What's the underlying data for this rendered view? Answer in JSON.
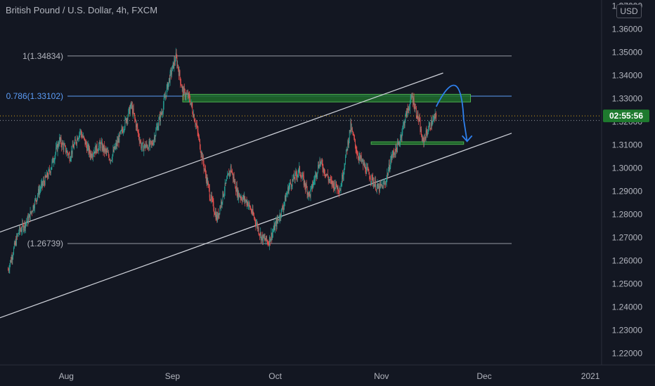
{
  "header": {
    "title": "British Pound / U.S. Dollar, 4h, FXCM",
    "currency": "USD"
  },
  "colors": {
    "background": "#131722",
    "up": "#26a69a",
    "down": "#ef5350",
    "channel_line": "#d1d4dc",
    "fib_line": "#9598a1",
    "fib_highlight": "#5b9cf6",
    "zone_fill": "#1e6b2a",
    "zone_border": "#4caf50",
    "countdown_bg": "#1e7a2e",
    "projection": "#2f80ed"
  },
  "countdown": "02:55:56",
  "chart_data": {
    "type": "candlestick",
    "symbol": "GBPUSD",
    "timeframe": "4h",
    "ylim": [
      1.215,
      1.3725
    ],
    "price_ticks": [
      "1.37000",
      "1.36000",
      "1.35000",
      "1.34000",
      "1.33000",
      "1.32000",
      "1.31000",
      "1.30000",
      "1.29000",
      "1.28000",
      "1.27000",
      "1.26000",
      "1.25000",
      "1.24000",
      "1.23000",
      "1.22000"
    ],
    "date_ticks": [
      {
        "label": "Aug",
        "day": 18
      },
      {
        "label": "Sep",
        "day": 49
      },
      {
        "label": "Oct",
        "day": 79
      },
      {
        "label": "Nov",
        "day": 110
      },
      {
        "label": "Dec",
        "day": 140
      },
      {
        "label": "2021",
        "day": 171
      }
    ],
    "fib_levels": [
      {
        "label": "1(1.34834)",
        "price": 1.34834,
        "highlight": false
      },
      {
        "label": "0.786(1.33102)",
        "price": 1.33102,
        "highlight": true
      },
      {
        "label": "(1.26739)",
        "price": 1.26739,
        "highlight": false
      }
    ],
    "current_price": 1.3225,
    "price_close_line": 1.3205,
    "price_path": [
      [
        1,
        1.256
      ],
      [
        4,
        1.272
      ],
      [
        7,
        1.278
      ],
      [
        10,
        1.29
      ],
      [
        13,
        1.298
      ],
      [
        16,
        1.312
      ],
      [
        19,
        1.305
      ],
      [
        22,
        1.316
      ],
      [
        25,
        1.306
      ],
      [
        28,
        1.31
      ],
      [
        31,
        1.304
      ],
      [
        34,
        1.315
      ],
      [
        37,
        1.327
      ],
      [
        40,
        1.309
      ],
      [
        43,
        1.31
      ],
      [
        46,
        1.325
      ],
      [
        48,
        1.338
      ],
      [
        50,
        1.348
      ],
      [
        52,
        1.333
      ],
      [
        54,
        1.33
      ],
      [
        56,
        1.318
      ],
      [
        58,
        1.302
      ],
      [
        60,
        1.288
      ],
      [
        62,
        1.278
      ],
      [
        64,
        1.29
      ],
      [
        66,
        1.3
      ],
      [
        68,
        1.289
      ],
      [
        71,
        1.285
      ],
      [
        73,
        1.278
      ],
      [
        75,
        1.27
      ],
      [
        77,
        1.268
      ],
      [
        79,
        1.275
      ],
      [
        81,
        1.282
      ],
      [
        83,
        1.292
      ],
      [
        86,
        1.299
      ],
      [
        89,
        1.288
      ],
      [
        92,
        1.303
      ],
      [
        95,
        1.294
      ],
      [
        98,
        1.291
      ],
      [
        101,
        1.318
      ],
      [
        103,
        1.306
      ],
      [
        106,
        1.298
      ],
      [
        109,
        1.291
      ],
      [
        111,
        1.293
      ],
      [
        113,
        1.305
      ],
      [
        115,
        1.31
      ],
      [
        117,
        1.322
      ],
      [
        119,
        1.331
      ],
      [
        120,
        1.325
      ],
      [
        121,
        1.32
      ],
      [
        122,
        1.311
      ],
      [
        124,
        1.318
      ],
      [
        126,
        1.3225
      ]
    ],
    "upper_channel": [
      [
        -2,
        1.272
      ],
      [
        128,
        1.341
      ]
    ],
    "lower_channel": [
      [
        -2,
        1.235
      ],
      [
        148,
        1.315
      ]
    ],
    "supply_zone": {
      "day_from": 52,
      "day_to": 136,
      "price_low": 1.3285,
      "price_high": 1.3318
    },
    "demand_zone": {
      "day_from": 107,
      "day_to": 134,
      "price_low": 1.3102,
      "price_high": 1.3113
    },
    "projection_path": [
      [
        126,
        1.3265
      ],
      [
        131,
        1.3345
      ],
      [
        134,
        1.321
      ],
      [
        135,
        1.3115
      ]
    ],
    "grid": false
  }
}
